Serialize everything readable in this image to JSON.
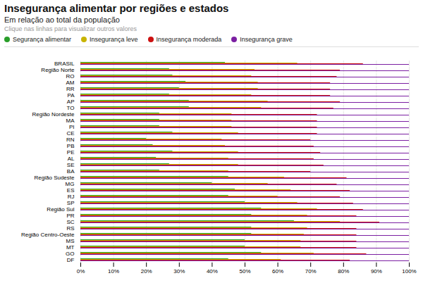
{
  "chart_data": {
    "type": "bar",
    "orientation": "horizontal",
    "stacked": false,
    "title": "Insegurança alimentar por regiões e estados",
    "subtitle": "Em relação ao total da população",
    "annotations": [
      "Clique nas linhas para visualizar outros valores"
    ],
    "categories": [
      "BRASIL",
      "Região Norte",
      "RO",
      "AM",
      "RR",
      "PA",
      "AP",
      "TO",
      "Região Nordeste",
      "MA",
      "PI",
      "CE",
      "RN",
      "PB",
      "PE",
      "AL",
      "SE",
      "BA",
      "Região Sudeste",
      "MG",
      "ES",
      "RJ",
      "SP",
      "Região Sul",
      "PR",
      "SC",
      "RS",
      "Região Centro-Oeste",
      "MS",
      "MT",
      "GO",
      "DF"
    ],
    "series": [
      {
        "name": "Segurança alimentar",
        "color": "#2a9e2a",
        "values": [
          44,
          27,
          28,
          32,
          30,
          27,
          33,
          33,
          24,
          24,
          24,
          28,
          20,
          22,
          28,
          23,
          27,
          24,
          45,
          40,
          47,
          45,
          50,
          55,
          52,
          65,
          52,
          52,
          50,
          50,
          55,
          45
        ]
      },
      {
        "name": "Insegurança leve",
        "color": "#c8b400",
        "values": [
          66,
          53,
          52,
          54,
          54,
          52,
          57,
          55,
          46,
          46,
          46,
          48,
          43,
          44,
          48,
          45,
          48,
          45,
          62,
          57,
          64,
          60,
          66,
          72,
          69,
          79,
          69,
          68,
          67,
          67,
          71,
          61
        ]
      },
      {
        "name": "Insegurança moderada",
        "color": "#cc1111",
        "values": [
          86,
          79,
          78,
          76,
          76,
          76,
          79,
          77,
          72,
          72,
          72,
          72,
          70,
          71,
          73,
          71,
          74,
          70,
          81,
          78,
          82,
          79,
          83,
          86,
          84,
          91,
          84,
          84,
          84,
          84,
          87,
          82
        ]
      },
      {
        "name": "Insegurança grave",
        "color": "#7b1fa2",
        "values": [
          100,
          100,
          100,
          100,
          100,
          100,
          100,
          100,
          100,
          100,
          100,
          100,
          100,
          100,
          100,
          100,
          100,
          100,
          100,
          100,
          100,
          100,
          100,
          100,
          100,
          100,
          100,
          100,
          100,
          100,
          100,
          100
        ]
      }
    ],
    "xlim": [
      0,
      100
    ],
    "xticks": [
      {
        "value": 0,
        "label": "0%"
      },
      {
        "value": 10,
        "label": "10%"
      },
      {
        "value": 20,
        "label": "20%"
      },
      {
        "value": 30,
        "label": "30%"
      },
      {
        "value": 40,
        "label": "40%"
      },
      {
        "value": 50,
        "label": "50%"
      },
      {
        "value": 60,
        "label": "60%"
      },
      {
        "value": 70,
        "label": "70%"
      },
      {
        "value": 80,
        "label": "80%"
      },
      {
        "value": 90,
        "label": "90%"
      },
      {
        "value": 100,
        "label": "100%"
      }
    ],
    "grid": true
  }
}
